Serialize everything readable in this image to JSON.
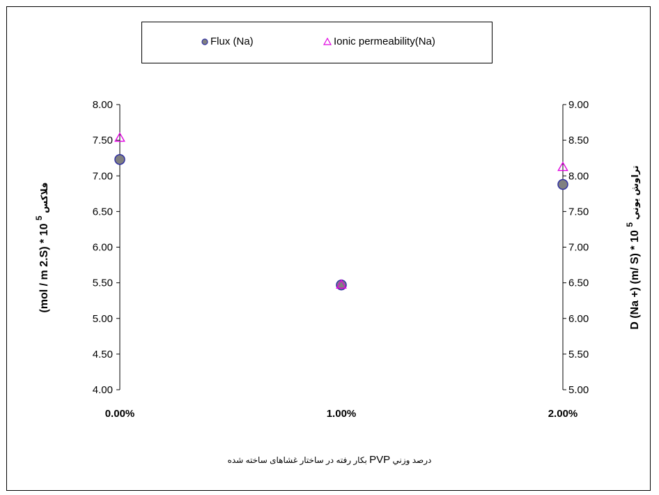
{
  "legend": {
    "series1": "Flux (Na)",
    "series2": "Ionic permeability(Na)"
  },
  "x_axis_label_parts": [
    "درصد وزني ",
    "PVP",
    " بكار رفته در ساختار غشاهای ساخته شده"
  ],
  "y_left_title": {
    "main": "(mol / m  2.S) * 10 ",
    "exp": "5",
    "persian": "فلاكس"
  },
  "y_right_title": {
    "main": "D (Na +) (m/ S) * 10 ",
    "exp": "5",
    "persian": "تراوش يوني"
  },
  "chart_data": {
    "type": "scatter",
    "categories": [
      "0.00%",
      "1.00%",
      "2.00%"
    ],
    "x": [
      0,
      1,
      2
    ],
    "xlim": [
      0,
      2
    ],
    "y_left": {
      "ylim": [
        4.0,
        8.0
      ],
      "ticks": [
        "4.00",
        "4.50",
        "5.00",
        "5.50",
        "6.00",
        "6.50",
        "7.00",
        "7.50",
        "8.00"
      ]
    },
    "y_right": {
      "ylim": [
        5.0,
        9.0
      ],
      "ticks": [
        "5.00",
        "5.50",
        "6.00",
        "6.50",
        "7.00",
        "7.50",
        "8.00",
        "8.50",
        "9.00"
      ]
    },
    "series": [
      {
        "name": "Flux (Na)",
        "axis": "left",
        "marker": "circle",
        "fill": "#808080",
        "stroke": "#2f2fa0",
        "values": [
          7.23,
          5.47,
          6.88
        ]
      },
      {
        "name": "Ionic permeability(Na)",
        "axis": "right",
        "marker": "triangle",
        "fill": "none",
        "stroke": "#e000e0",
        "values": [
          8.53,
          6.47,
          8.12
        ]
      }
    ],
    "grid": false,
    "legend_position": "top"
  }
}
